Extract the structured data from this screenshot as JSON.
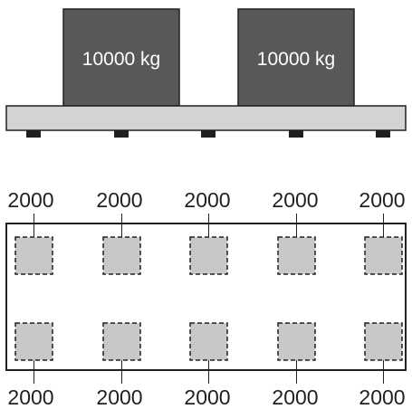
{
  "elevation": {
    "loads": [
      {
        "label": "10000 kg"
      },
      {
        "label": "10000 kg"
      }
    ],
    "support_count": 5
  },
  "plan": {
    "top_row_values": [
      "2000",
      "2000",
      "2000",
      "2000",
      "2000"
    ],
    "bottom_row_values": [
      "2000",
      "2000",
      "2000",
      "2000",
      "2000"
    ]
  },
  "colors": {
    "load_fill": "#58585a",
    "load_text": "#ffffff",
    "platform_fill": "#d3d3d3",
    "support_fill": "#1f1f1f",
    "pad_fill": "#c8c8c8",
    "outline": "#231f20",
    "text": "#231f20"
  }
}
